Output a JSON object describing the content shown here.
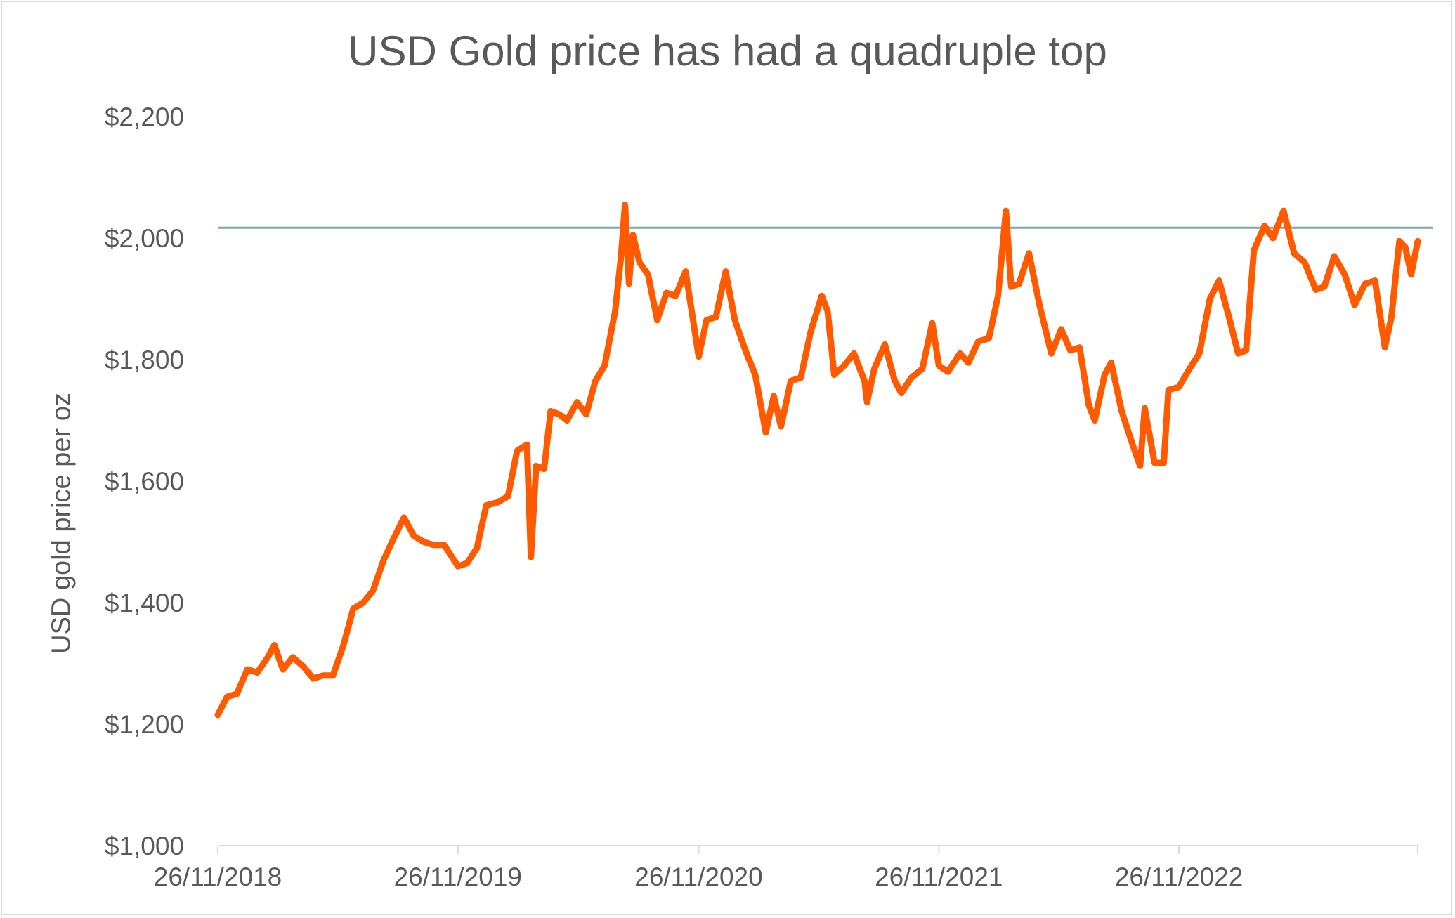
{
  "chart_data": {
    "type": "line",
    "title": "USD Gold price has had a quadruple top",
    "ylabel": "USD gold price per oz",
    "xlabel": "",
    "x_tick_labels": [
      "26/11/2018",
      "26/11/2019",
      "26/11/2020",
      "26/11/2021",
      "26/11/2022"
    ],
    "x_range": [
      "2018-11-26",
      "2023-11-24"
    ],
    "y_tick_labels": [
      "$1,000",
      "$1,200",
      "$1,400",
      "$1,600",
      "$1,800",
      "$2,000",
      "$2,200"
    ],
    "y_ticks": [
      1000,
      1200,
      1400,
      1600,
      1800,
      2000,
      2200
    ],
    "ylim": [
      1000,
      2200
    ],
    "grid": false,
    "series": [
      {
        "color": "#ff5a00",
        "points": [
          [
            "2018-11-26",
            1215
          ],
          [
            "2018-12-10",
            1245
          ],
          [
            "2018-12-25",
            1250
          ],
          [
            "2019-01-10",
            1290
          ],
          [
            "2019-01-25",
            1285
          ],
          [
            "2019-02-10",
            1310
          ],
          [
            "2019-02-20",
            1330
          ],
          [
            "2019-03-05",
            1290
          ],
          [
            "2019-03-20",
            1310
          ],
          [
            "2019-04-05",
            1295
          ],
          [
            "2019-04-20",
            1275
          ],
          [
            "2019-05-05",
            1280
          ],
          [
            "2019-05-20",
            1280
          ],
          [
            "2019-06-05",
            1330
          ],
          [
            "2019-06-20",
            1390
          ],
          [
            "2019-07-05",
            1400
          ],
          [
            "2019-07-20",
            1420
          ],
          [
            "2019-08-05",
            1470
          ],
          [
            "2019-08-20",
            1505
          ],
          [
            "2019-09-05",
            1540
          ],
          [
            "2019-09-20",
            1510
          ],
          [
            "2019-10-05",
            1500
          ],
          [
            "2019-10-20",
            1495
          ],
          [
            "2019-11-05",
            1495
          ],
          [
            "2019-11-26",
            1460
          ],
          [
            "2019-12-10",
            1465
          ],
          [
            "2019-12-25",
            1490
          ],
          [
            "2020-01-08",
            1560
          ],
          [
            "2020-01-25",
            1565
          ],
          [
            "2020-02-10",
            1575
          ],
          [
            "2020-02-24",
            1650
          ],
          [
            "2020-03-10",
            1660
          ],
          [
            "2020-03-16",
            1475
          ],
          [
            "2020-03-24",
            1625
          ],
          [
            "2020-04-05",
            1620
          ],
          [
            "2020-04-15",
            1715
          ],
          [
            "2020-04-28",
            1710
          ],
          [
            "2020-05-10",
            1700
          ],
          [
            "2020-05-25",
            1730
          ],
          [
            "2020-06-08",
            1710
          ],
          [
            "2020-06-22",
            1765
          ],
          [
            "2020-07-06",
            1790
          ],
          [
            "2020-07-22",
            1880
          ],
          [
            "2020-07-31",
            1970
          ],
          [
            "2020-08-06",
            2055
          ],
          [
            "2020-08-12",
            1925
          ],
          [
            "2020-08-18",
            2005
          ],
          [
            "2020-08-28",
            1960
          ],
          [
            "2020-09-10",
            1940
          ],
          [
            "2020-09-24",
            1865
          ],
          [
            "2020-10-08",
            1910
          ],
          [
            "2020-10-22",
            1905
          ],
          [
            "2020-11-06",
            1945
          ],
          [
            "2020-11-26",
            1805
          ],
          [
            "2020-12-08",
            1865
          ],
          [
            "2020-12-22",
            1870
          ],
          [
            "2021-01-06",
            1945
          ],
          [
            "2021-01-20",
            1865
          ],
          [
            "2021-02-05",
            1815
          ],
          [
            "2021-02-20",
            1775
          ],
          [
            "2021-03-08",
            1680
          ],
          [
            "2021-03-20",
            1740
          ],
          [
            "2021-03-31",
            1690
          ],
          [
            "2021-04-15",
            1765
          ],
          [
            "2021-04-30",
            1770
          ],
          [
            "2021-05-15",
            1845
          ],
          [
            "2021-06-01",
            1905
          ],
          [
            "2021-06-10",
            1880
          ],
          [
            "2021-06-20",
            1775
          ],
          [
            "2021-07-05",
            1790
          ],
          [
            "2021-07-20",
            1810
          ],
          [
            "2021-08-05",
            1765
          ],
          [
            "2021-08-09",
            1730
          ],
          [
            "2021-08-20",
            1785
          ],
          [
            "2021-09-05",
            1825
          ],
          [
            "2021-09-20",
            1765
          ],
          [
            "2021-09-30",
            1745
          ],
          [
            "2021-10-15",
            1770
          ],
          [
            "2021-11-01",
            1785
          ],
          [
            "2021-11-16",
            1860
          ],
          [
            "2021-11-26",
            1790
          ],
          [
            "2021-12-10",
            1780
          ],
          [
            "2021-12-28",
            1810
          ],
          [
            "2022-01-10",
            1795
          ],
          [
            "2022-01-25",
            1830
          ],
          [
            "2022-02-10",
            1835
          ],
          [
            "2022-02-24",
            1905
          ],
          [
            "2022-03-08",
            2045
          ],
          [
            "2022-03-16",
            1920
          ],
          [
            "2022-03-28",
            1925
          ],
          [
            "2022-04-12",
            1975
          ],
          [
            "2022-04-28",
            1890
          ],
          [
            "2022-05-16",
            1810
          ],
          [
            "2022-05-31",
            1850
          ],
          [
            "2022-06-14",
            1815
          ],
          [
            "2022-06-28",
            1820
          ],
          [
            "2022-07-12",
            1725
          ],
          [
            "2022-07-21",
            1700
          ],
          [
            "2022-08-05",
            1775
          ],
          [
            "2022-08-15",
            1795
          ],
          [
            "2022-08-31",
            1715
          ],
          [
            "2022-09-15",
            1665
          ],
          [
            "2022-09-28",
            1625
          ],
          [
            "2022-10-05",
            1720
          ],
          [
            "2022-10-20",
            1630
          ],
          [
            "2022-11-03",
            1630
          ],
          [
            "2022-11-10",
            1750
          ],
          [
            "2022-11-26",
            1755
          ],
          [
            "2022-12-12",
            1785
          ],
          [
            "2022-12-27",
            1810
          ],
          [
            "2023-01-12",
            1900
          ],
          [
            "2023-01-26",
            1930
          ],
          [
            "2023-02-10",
            1870
          ],
          [
            "2023-02-24",
            1810
          ],
          [
            "2023-03-08",
            1815
          ],
          [
            "2023-03-20",
            1980
          ],
          [
            "2023-04-05",
            2020
          ],
          [
            "2023-04-18",
            2000
          ],
          [
            "2023-05-04",
            2045
          ],
          [
            "2023-05-20",
            1975
          ],
          [
            "2023-06-05",
            1960
          ],
          [
            "2023-06-22",
            1915
          ],
          [
            "2023-07-05",
            1920
          ],
          [
            "2023-07-20",
            1970
          ],
          [
            "2023-08-05",
            1940
          ],
          [
            "2023-08-20",
            1890
          ],
          [
            "2023-09-05",
            1925
          ],
          [
            "2023-09-20",
            1930
          ],
          [
            "2023-10-05",
            1820
          ],
          [
            "2023-10-15",
            1870
          ],
          [
            "2023-10-27",
            1995
          ],
          [
            "2023-11-05",
            1985
          ],
          [
            "2023-11-14",
            1940
          ],
          [
            "2023-11-24",
            1995
          ]
        ]
      }
    ],
    "reference_line": {
      "value": 2017,
      "color": "#7fa7aa"
    }
  }
}
